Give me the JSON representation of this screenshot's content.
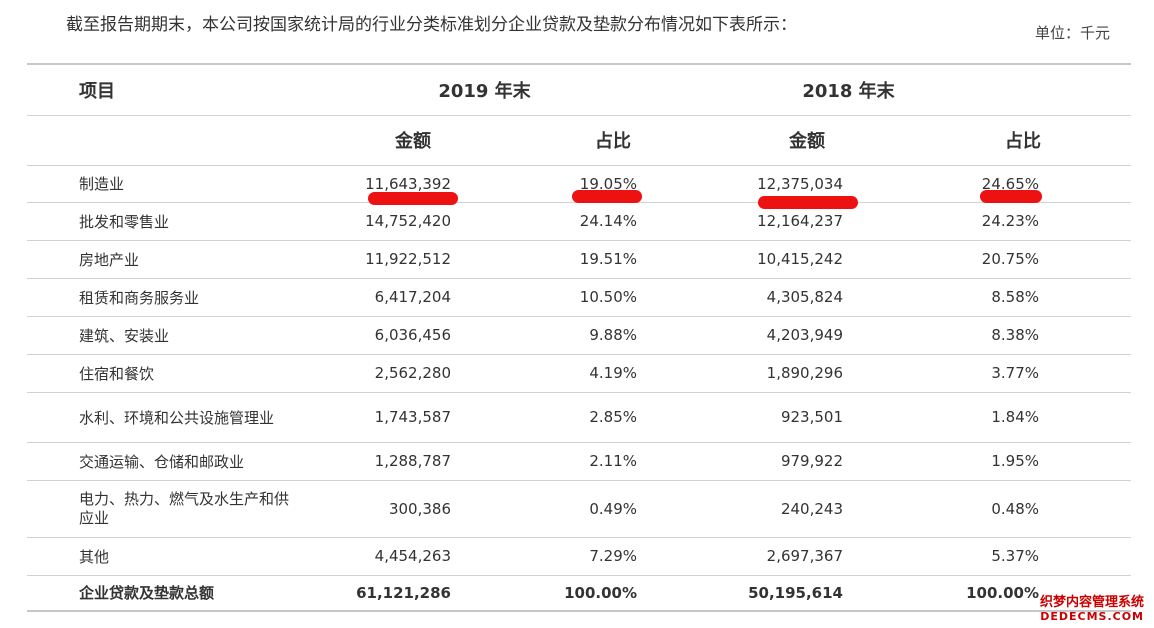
{
  "intro": "截至报告期期末，本公司按国家统计局的行业分类标准划分企业贷款及垫款分布情况如下表所示：",
  "unit": "单位：千元",
  "header": {
    "item": "项目",
    "y2019": "2019 年末",
    "y2018": "2018 年末",
    "amount": "金额",
    "ratio": "占比"
  },
  "rows": [
    {
      "name": "制造业",
      "a2019": "11,643,392",
      "p2019": "19.05%",
      "a2018": "12,375,034",
      "p2018": "24.65%"
    },
    {
      "name": "批发和零售业",
      "a2019": "14,752,420",
      "p2019": "24.14%",
      "a2018": "12,164,237",
      "p2018": "24.23%"
    },
    {
      "name": "房地产业",
      "a2019": "11,922,512",
      "p2019": "19.51%",
      "a2018": "10,415,242",
      "p2018": "20.75%"
    },
    {
      "name": "租赁和商务服务业",
      "a2019": "6,417,204",
      "p2019": "10.50%",
      "a2018": "4,305,824",
      "p2018": "8.58%"
    },
    {
      "name": "建筑、安装业",
      "a2019": "6,036,456",
      "p2019": "9.88%",
      "a2018": "4,203,949",
      "p2018": "8.38%"
    },
    {
      "name": "住宿和餐饮",
      "a2019": "2,562,280",
      "p2019": "4.19%",
      "a2018": "1,890,296",
      "p2018": "3.77%"
    },
    {
      "name": "水利、环境和公共设施管理业",
      "a2019": "1,743,587",
      "p2019": "2.85%",
      "a2018": "923,501",
      "p2018": "1.84%"
    },
    {
      "name": "交通运输、仓储和邮政业",
      "a2019": "1,288,787",
      "p2019": "2.11%",
      "a2018": "979,922",
      "p2018": "1.95%"
    },
    {
      "name": "电力、热力、燃气及水生产和供应业",
      "a2019": "300,386",
      "p2019": "0.49%",
      "a2018": "240,243",
      "p2018": "0.48%"
    },
    {
      "name": "其他",
      "a2019": "4,454,263",
      "p2019": "7.29%",
      "a2018": "2,697,367",
      "p2018": "5.37%"
    }
  ],
  "total": {
    "name": "企业贷款及垫款总额",
    "a2019": "61,121,286",
    "p2019": "100.00%",
    "a2018": "50,195,614",
    "p2018": "100.00%"
  },
  "watermark": {
    "line1": "织梦内容管理系统",
    "line2": "DEDECMS.COM"
  },
  "colors": {
    "highlight": "#ee1111",
    "rule": "#d2d2d2",
    "text": "#333333"
  }
}
